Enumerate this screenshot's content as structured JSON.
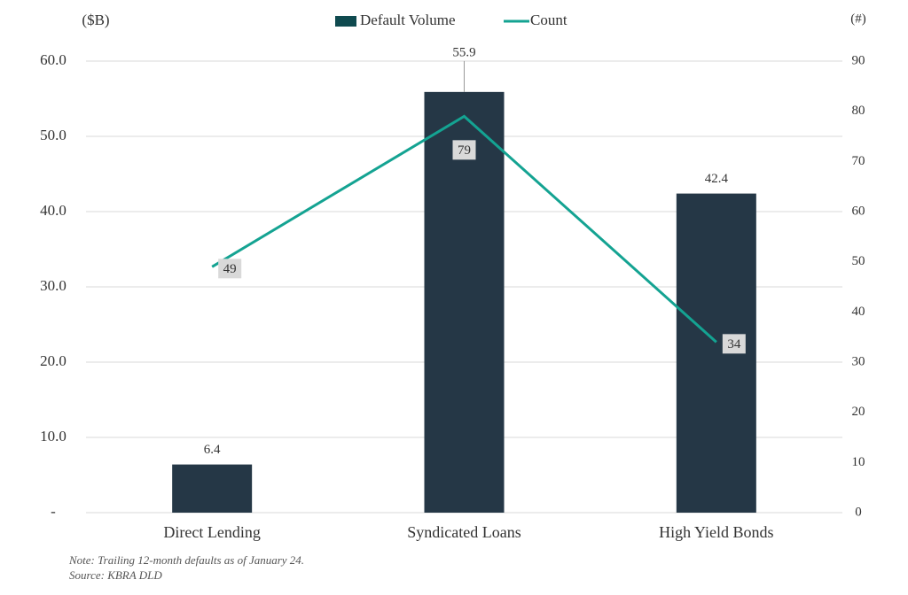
{
  "chart_data": {
    "type": "bar-line",
    "categories": [
      "Direct Lending",
      "Syndicated Loans",
      "High Yield Bonds"
    ],
    "series": [
      {
        "name": "Default Volume",
        "type": "bar",
        "color": "#253746",
        "legend_color": "#0f4a4f",
        "values": [
          6.4,
          55.9,
          42.4
        ]
      },
      {
        "name": "Count",
        "type": "line",
        "axis": "y2",
        "color": "#14a392",
        "values": [
          49,
          79,
          34
        ]
      }
    ],
    "y_label": "($B)",
    "y2_label": "(#)",
    "ylim": [
      0,
      60
    ],
    "yticks": [
      {
        "value": 0,
        "label": "-"
      },
      {
        "value": 10,
        "label": "10.0"
      },
      {
        "value": 20,
        "label": "20.0"
      },
      {
        "value": 30,
        "label": "30.0"
      },
      {
        "value": 40,
        "label": "40.0"
      },
      {
        "value": 50,
        "label": "50.0"
      },
      {
        "value": 60,
        "label": "60.0"
      }
    ],
    "y2lim": [
      0,
      90
    ],
    "y2ticks": [
      0,
      10,
      20,
      30,
      40,
      50,
      60,
      70,
      80,
      90
    ],
    "grid": true,
    "legend_position": "top",
    "notes": [
      "Note: Trailing 12-month defaults as of January 24.",
      "Source: KBRA DLD"
    ]
  }
}
